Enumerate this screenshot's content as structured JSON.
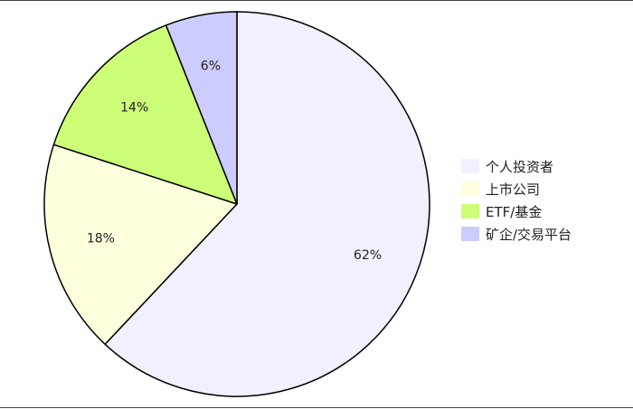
{
  "chart_data": {
    "type": "pie",
    "title": "",
    "legend_position": "right",
    "start_angle_deg": 0,
    "direction": "clockwise",
    "slices": [
      {
        "label": "个人投资者",
        "value": 62,
        "display": "62%",
        "color": "#f0f0ff"
      },
      {
        "label": "上市公司",
        "value": 18,
        "display": "18%",
        "color": "#ffffdd"
      },
      {
        "label": "ETF/基金",
        "value": 14,
        "display": "14%",
        "color": "#ccff77"
      },
      {
        "label": "矿企/交易平台",
        "value": 6,
        "display": "6%",
        "color": "#ccccff"
      }
    ]
  }
}
